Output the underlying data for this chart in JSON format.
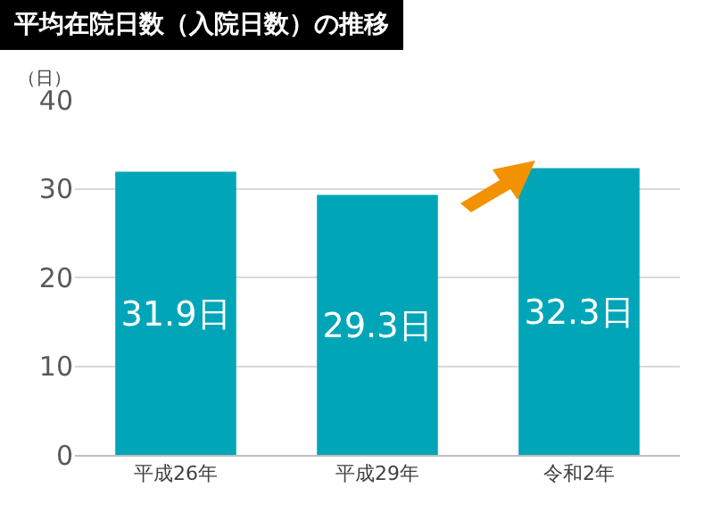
{
  "chart_data": {
    "type": "bar",
    "title": "平均在院日数（入院日数）の推移",
    "ylabel": "（日）",
    "categories": [
      "平成26年",
      "平成29年",
      "令和2年"
    ],
    "values": [
      31.9,
      29.3,
      32.3
    ],
    "color": "#00a6b8",
    "value_labels": [
      "31.9日",
      "29.3日",
      "32.3日"
    ],
    "ylim": [
      0,
      40
    ],
    "yticks": [
      0,
      10,
      20,
      30,
      40
    ],
    "grid": "y"
  }
}
